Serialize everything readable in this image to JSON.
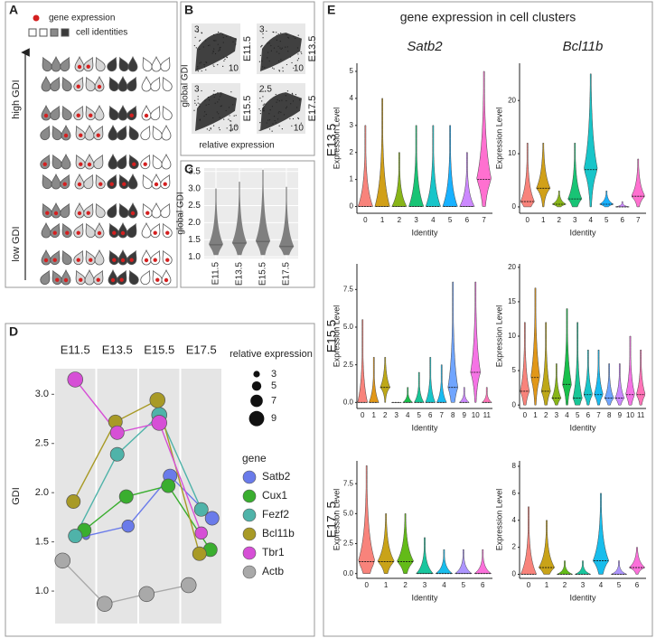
{
  "panel_labels": [
    "A",
    "B",
    "C",
    "D",
    "E"
  ],
  "panel_a": {
    "legend": [
      "gene expression",
      "cell identities"
    ],
    "axis": [
      "high GDI",
      "low GDI"
    ]
  },
  "panel_b": {
    "y_label": "global GDI",
    "x_label": "relative expression",
    "plots": [
      {
        "label": "E11.5",
        "ytick": 3,
        "xtick": 10
      },
      {
        "label": "E13.5",
        "ytick": 3,
        "xtick": 10
      },
      {
        "label": "E15.5",
        "ytick": 3,
        "xtick": 10
      },
      {
        "label": "E17.5",
        "ytick": 2.5,
        "xtick": 10
      }
    ]
  },
  "panel_e": {
    "title": "gene expression in cell clusters",
    "columns": [
      "Satb2",
      "Bcl11b"
    ],
    "rows": [
      "E13.5",
      "E15.5",
      "E17. 5"
    ]
  },
  "chart_data": [
    {
      "type": "violin",
      "y_label": "global GDI",
      "grid": true,
      "color": "#7f7f7f",
      "categories": [
        "E11.5",
        "E13.5",
        "E15.5",
        "E17.5"
      ],
      "min": [
        1.05,
        1.05,
        1.05,
        1.05
      ],
      "median": [
        1.35,
        1.4,
        1.45,
        1.3
      ],
      "max": [
        3.0,
        3.2,
        3.55,
        3.05
      ],
      "ylim": [
        0.95,
        3.6
      ],
      "yticks": [
        {
          "value": 1,
          "label": "1.0"
        },
        1.5,
        {
          "value": 2,
          "label": "2.0"
        },
        2.5,
        {
          "value": 3,
          "label": "3.0"
        },
        3.5
      ]
    },
    {
      "type": "bubble_line",
      "y_label": "GDI",
      "grid": true,
      "x_axis": "top",
      "categories": [
        "E11.5",
        "E13.5",
        "E15.5",
        "E17.5"
      ],
      "ylim": [
        0.67,
        3.26
      ],
      "yticks": [
        {
          "value": 1,
          "label": "1.0"
        },
        1.5,
        {
          "value": 2,
          "label": "2.0"
        },
        2.5,
        {
          "value": 3,
          "label": "3.0"
        }
      ],
      "size_title": "relative expression",
      "size_legend": [
        3,
        5,
        7,
        9
      ],
      "legend_title": "gene",
      "series": [
        {
          "name": "Satb2",
          "color": "#6a7bea",
          "values": [
            1.56,
            1.66,
            2.17,
            1.74
          ],
          "sizes": [
            3.5,
            7,
            8,
            8
          ]
        },
        {
          "name": "Cux1",
          "color": "#3aae2f",
          "values": [
            1.62,
            1.96,
            2.07,
            1.42
          ],
          "sizes": [
            8,
            8,
            8,
            8
          ]
        },
        {
          "name": "Fezf2",
          "color": "#4fb3a9",
          "values": [
            1.56,
            2.39,
            2.79,
            1.83
          ],
          "sizes": [
            8,
            8,
            9,
            8
          ]
        },
        {
          "name": "Bcl11b",
          "color": "#a89a26",
          "values": [
            1.91,
            2.72,
            2.94,
            1.38
          ],
          "sizes": [
            8,
            8,
            9,
            8
          ]
        },
        {
          "name": "Tbr1",
          "color": "#d64fd6",
          "values": [
            3.15,
            2.61,
            2.71,
            1.59
          ],
          "sizes": [
            9,
            8,
            9,
            7
          ]
        },
        {
          "name": "Actb",
          "color": "#a9a9a9",
          "values": [
            1.31,
            0.87,
            0.97,
            1.06
          ],
          "sizes": [
            9,
            9,
            9,
            9
          ]
        }
      ]
    },
    {
      "type": "violin",
      "x_label": "Identity",
      "y_label": "Expression Level",
      "grid": false,
      "categories": [
        "0",
        "1",
        "2",
        "3",
        "4",
        "5",
        "6",
        "7"
      ],
      "max": [
        3,
        4,
        2,
        3,
        3,
        3,
        2,
        5
      ],
      "median": [
        0,
        0,
        0,
        0,
        0,
        0,
        0,
        1
      ],
      "colors": [
        "#F8766D",
        "#CD9600",
        "#7CAE00",
        "#00BE67",
        "#00BFC4",
        "#00A9FF",
        "#C77CFF",
        "#FF61CC"
      ],
      "ylim": [
        -0.25,
        5.3
      ],
      "yticks": [
        0,
        1,
        2,
        3,
        4,
        5
      ]
    },
    {
      "type": "violin",
      "x_label": "Identity",
      "y_label": "Expression Level",
      "grid": false,
      "categories": [
        "0",
        "1",
        "2",
        "3",
        "4",
        "5",
        "6",
        "7"
      ],
      "max": [
        12,
        12,
        3,
        12,
        25,
        3,
        1,
        9
      ],
      "median": [
        1,
        3.5,
        0.5,
        1.5,
        7,
        0.5,
        0,
        2
      ],
      "colors": [
        "#F8766D",
        "#CD9600",
        "#7CAE00",
        "#00BE67",
        "#00BFC4",
        "#00A9FF",
        "#C77CFF",
        "#FF61CC"
      ],
      "ylim": [
        -1.2,
        27
      ],
      "yticks": [
        0,
        10,
        20
      ]
    },
    {
      "type": "violin",
      "x_label": "Identity",
      "y_label": "Expression Level",
      "grid": false,
      "categories": [
        "0",
        "1",
        "2",
        "3",
        "4",
        "5",
        "6",
        "7",
        "8",
        "9",
        "10",
        "11"
      ],
      "max": [
        5.5,
        3,
        3,
        0,
        1,
        2,
        3,
        2.5,
        8,
        1,
        8,
        1
      ],
      "median": [
        0,
        0,
        1,
        0,
        0,
        0,
        0,
        0,
        1,
        0,
        2,
        0
      ],
      "colors": [
        "#F8766D",
        "#DE8C00",
        "#B79F00",
        "#7CAE00",
        "#00BA38",
        "#00C08B",
        "#00BFC4",
        "#00B4F0",
        "#619CFF",
        "#C77CFF",
        "#F564E3",
        "#FF64B0"
      ],
      "ylim": [
        -0.4,
        9.2
      ],
      "yticks": [
        {
          "value": 0,
          "label": "0.0"
        },
        2.5,
        {
          "value": 5,
          "label": "5.0"
        },
        7.5
      ]
    },
    {
      "type": "violin",
      "x_label": "Identity",
      "y_label": "Expression Level",
      "grid": false,
      "categories": [
        "0",
        "1",
        "2",
        "3",
        "4",
        "5",
        "6",
        "7",
        "8",
        "9",
        "10",
        "11"
      ],
      "max": [
        12,
        17,
        12,
        6,
        14,
        12,
        8,
        8,
        6,
        6,
        10,
        8
      ],
      "median": [
        2,
        4,
        2,
        1,
        3,
        1,
        1.5,
        1.5,
        1,
        1,
        1.5,
        1.5
      ],
      "colors": [
        "#F8766D",
        "#DE8C00",
        "#B79F00",
        "#7CAE00",
        "#00BA38",
        "#00C08B",
        "#00BFC4",
        "#00B4F0",
        "#619CFF",
        "#C77CFF",
        "#F564E3",
        "#FF64B0"
      ],
      "ylim": [
        -0.5,
        20.5
      ],
      "yticks": [
        0,
        5,
        10,
        15,
        20
      ]
    },
    {
      "type": "violin",
      "x_label": "Identity",
      "y_label": "Expression Level",
      "grid": false,
      "categories": [
        "0",
        "1",
        "2",
        "3",
        "4",
        "5",
        "6"
      ],
      "max": [
        9,
        5,
        5,
        3,
        2,
        2,
        2
      ],
      "median": [
        1,
        1,
        1,
        0,
        0,
        0,
        0
      ],
      "colors": [
        "#F8766D",
        "#C49A00",
        "#53B400",
        "#00C094",
        "#00B6EB",
        "#A58AFF",
        "#FB61D7"
      ],
      "ylim": [
        -0.4,
        9.4
      ],
      "yticks": [
        {
          "value": 0,
          "label": "0.0"
        },
        2.5,
        {
          "value": 5,
          "label": "5.0"
        },
        7.5
      ]
    },
    {
      "type": "violin",
      "x_label": "Identity",
      "y_label": "Expression Level",
      "grid": false,
      "categories": [
        "0",
        "1",
        "2",
        "3",
        "4",
        "5",
        "6"
      ],
      "max": [
        5,
        4,
        1,
        1,
        6,
        1,
        2
      ],
      "median": [
        0,
        0.5,
        0,
        0,
        1,
        0,
        0.5
      ],
      "colors": [
        "#F8766D",
        "#C49A00",
        "#53B400",
        "#00C094",
        "#00B6EB",
        "#A58AFF",
        "#FB61D7"
      ],
      "ylim": [
        -0.3,
        8.4
      ],
      "yticks": [
        0,
        2,
        4,
        6,
        8
      ]
    }
  ]
}
